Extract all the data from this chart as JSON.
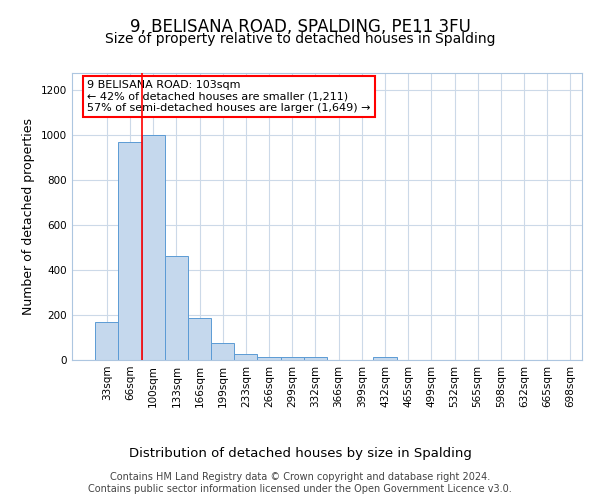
{
  "title": "9, BELISANA ROAD, SPALDING, PE11 3FU",
  "subtitle": "Size of property relative to detached houses in Spalding",
  "xlabel": "Distribution of detached houses by size in Spalding",
  "ylabel": "Number of detached properties",
  "bin_labels": [
    "33sqm",
    "66sqm",
    "100sqm",
    "133sqm",
    "166sqm",
    "199sqm",
    "233sqm",
    "266sqm",
    "299sqm",
    "332sqm",
    "366sqm",
    "399sqm",
    "432sqm",
    "465sqm",
    "499sqm",
    "532sqm",
    "565sqm",
    "598sqm",
    "632sqm",
    "665sqm",
    "698sqm"
  ],
  "bar_heights": [
    170,
    970,
    1000,
    465,
    185,
    75,
    25,
    15,
    15,
    15,
    0,
    0,
    15,
    0,
    0,
    0,
    0,
    0,
    0,
    0
  ],
  "bar_color": "#c5d8ed",
  "bar_edge_color": "#5b9bd5",
  "grid_color": "#ccd9e8",
  "annotation_text": "9 BELISANA ROAD: 103sqm\n← 42% of detached houses are smaller (1,211)\n57% of semi-detached houses are larger (1,649) →",
  "red_line_x": 1.5,
  "ylim": [
    0,
    1280
  ],
  "yticks": [
    0,
    200,
    400,
    600,
    800,
    1000,
    1200
  ],
  "footer_text": "Contains HM Land Registry data © Crown copyright and database right 2024.\nContains public sector information licensed under the Open Government Licence v3.0.",
  "title_fontsize": 12,
  "subtitle_fontsize": 10,
  "xlabel_fontsize": 9.5,
  "ylabel_fontsize": 9,
  "tick_fontsize": 7.5,
  "footer_fontsize": 7,
  "ann_fontsize": 8
}
